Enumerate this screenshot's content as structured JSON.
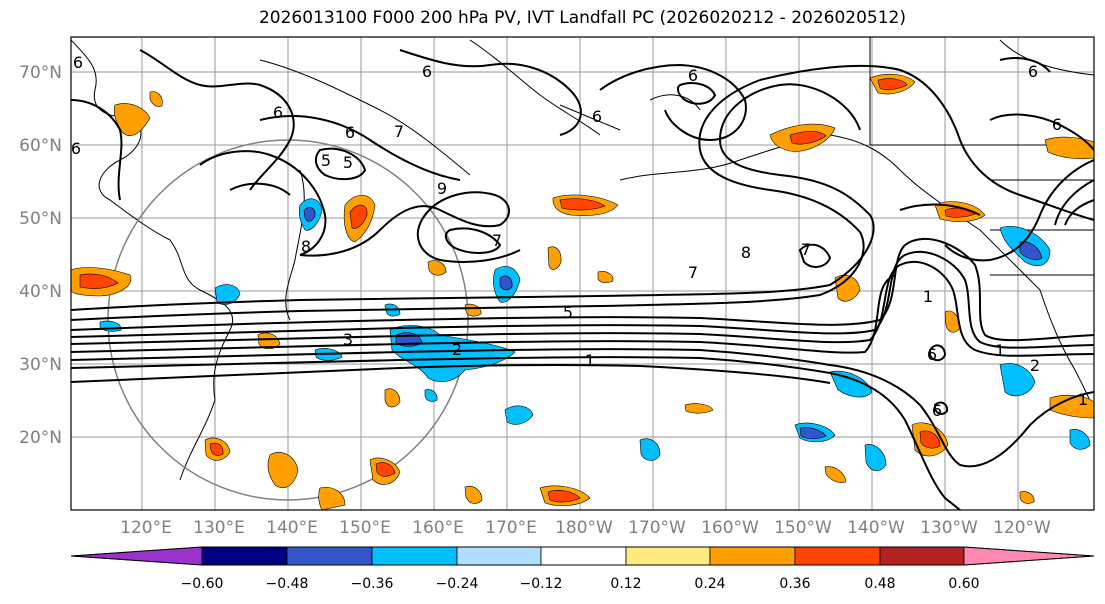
{
  "title": "2026013100 F000 200 hPa PV, IVT Landfall PC (2026020212 - 2026020512)",
  "lat_ticks": [
    "70°N",
    "60°N",
    "50°N",
    "40°N",
    "30°N",
    "20°N"
  ],
  "lon_ticks": [
    "120°E",
    "130°E",
    "140°E",
    "150°E",
    "160°E",
    "170°E",
    "180°W",
    "170°W",
    "160°W",
    "150°W",
    "140°W",
    "130°W",
    "120°W"
  ],
  "contour_labels": [
    "6",
    "6",
    "6",
    "6",
    "6",
    "6",
    "6",
    "6",
    "5",
    "5",
    "7",
    "7",
    "7",
    "8",
    "8",
    "9",
    "1",
    "2",
    "3",
    "5",
    "1",
    "1",
    "2",
    "1",
    "6",
    "6",
    "6",
    "7"
  ],
  "colorbar": {
    "tick_labels": [
      "−0.60",
      "−0.48",
      "−0.36",
      "−0.24",
      "−0.12",
      "0.12",
      "0.24",
      "0.36",
      "0.48",
      "0.60"
    ],
    "colors": [
      "#9933cc",
      "#000080",
      "#3355cc",
      "#00bfff",
      "#b0e0ff",
      "#ffffff",
      "#ffea80",
      "#ff9f00",
      "#ff4500",
      "#b22222",
      "#ff88b0"
    ]
  }
}
